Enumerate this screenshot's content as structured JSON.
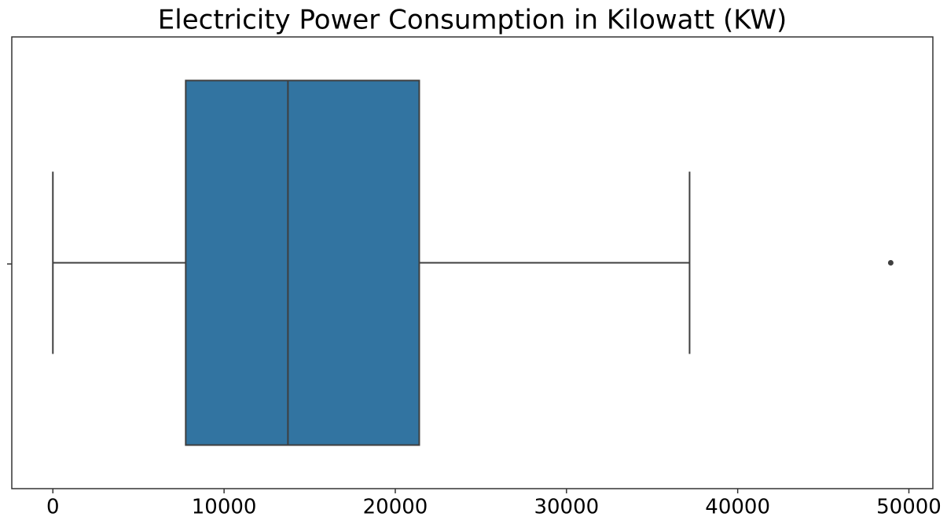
{
  "chart_data": {
    "type": "box",
    "title": "Electricity Power Consumption in Kilowatt (KW)",
    "orientation": "horizontal",
    "color": "#3274a1",
    "boxes": [
      {
        "min": 0,
        "q1": 7760,
        "median": 13730,
        "q3": 21400,
        "max": 37190,
        "outliers": [
          48940
        ]
      }
    ],
    "xlim": [
      -2400,
      51400
    ],
    "xticks": [
      0,
      10000,
      20000,
      30000,
      40000,
      50000
    ],
    "grid": false
  }
}
